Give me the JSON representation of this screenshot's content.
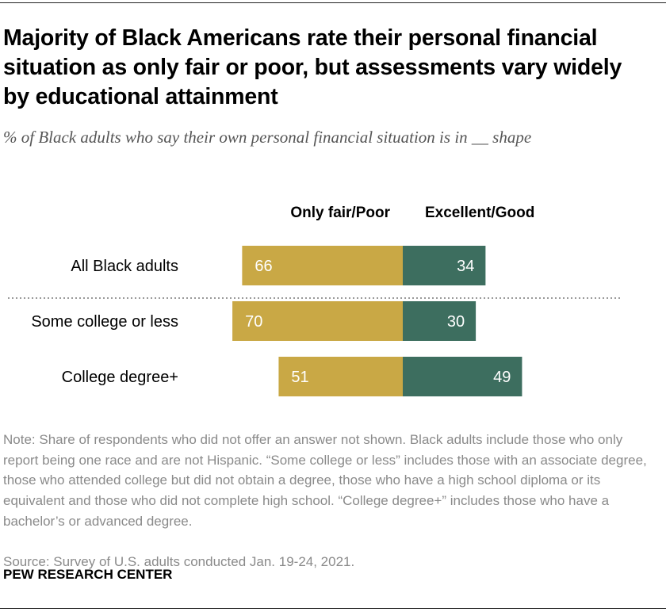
{
  "header": {
    "title": "Majority of Black Americans rate their personal financial situation as only fair or poor, but assessments vary widely by educational attainment",
    "subtitle": "% of Black adults who say their own personal financial situation is in __ shape"
  },
  "chart_data": {
    "type": "bar",
    "orientation": "horizontal-diverging",
    "categories": [
      "All Black adults",
      "Some college or less",
      "College degree+"
    ],
    "series": [
      {
        "name": "Only fair/Poor",
        "values": [
          66,
          70,
          51
        ],
        "color": "#c9a845"
      },
      {
        "name": "Excellent/Good",
        "values": [
          34,
          30,
          49
        ],
        "color": "#3d6e5f"
      }
    ],
    "separator_after_category": 0,
    "legend": "top",
    "grid": false
  },
  "footer": {
    "note": "Note: Share of respondents who did not offer an answer not shown. Black adults include those who only report being one race and are not Hispanic. “Some college or less” includes those with an associate degree, those who attended college but did not obtain a degree, those who have a high school diploma or its equivalent and those who did not complete high school. “College degree+” includes those who have a bachelor’s or advanced degree.",
    "source": "Source: Survey of U.S. adults conducted Jan. 19-24, 2021.",
    "brand": "PEW RESEARCH CENTER"
  }
}
